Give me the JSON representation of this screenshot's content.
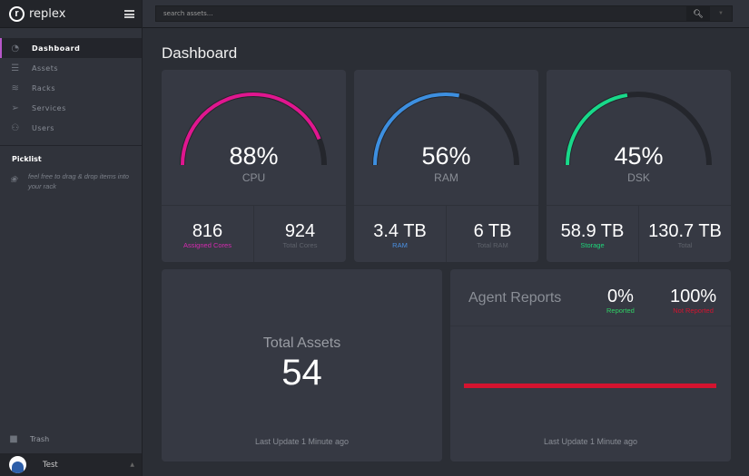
{
  "app": {
    "name": "replex"
  },
  "sidebar": {
    "items": [
      {
        "label": "Dashboard",
        "icon": "dashboard-icon",
        "active": true
      },
      {
        "label": "Assets",
        "icon": "list-icon"
      },
      {
        "label": "Racks",
        "icon": "layers-icon"
      },
      {
        "label": "Services",
        "icon": "paper-plane-icon"
      },
      {
        "label": "Users",
        "icon": "user-icon"
      }
    ],
    "picklist_title": "Picklist",
    "picklist_hint": "feel free to drag & drop items into your rack",
    "trash": "Trash",
    "user": "Test"
  },
  "search": {
    "placeholder": "search assets..."
  },
  "page_title": "Dashboard",
  "gauges": [
    {
      "value": 88,
      "display": "88%",
      "label": "CPU",
      "color": "#e0168f",
      "stats": [
        {
          "value": "816",
          "label": "Assigned Cores",
          "color": "#d62ab0"
        },
        {
          "value": "924",
          "label": "Total Cores"
        }
      ]
    },
    {
      "value": 56,
      "display": "56%",
      "label": "RAM",
      "color": "#3d8fe0",
      "stats": [
        {
          "value": "3.4 TB",
          "label": "RAM",
          "color": "#4a90e2"
        },
        {
          "value": "6 TB",
          "label": "Total RAM"
        }
      ]
    },
    {
      "value": 45,
      "display": "45%",
      "label": "DSK",
      "color": "#18d98a",
      "stats": [
        {
          "value": "58.9 TB",
          "label": "Storage",
          "color": "#1ed67a"
        },
        {
          "value": "130.7 TB",
          "label": "Total"
        }
      ]
    }
  ],
  "total_assets": {
    "label": "Total Assets",
    "value": "54",
    "update": "Last Update 1 Minute ago"
  },
  "agent_reports": {
    "title": "Agent Reports",
    "reported": {
      "value": "0%",
      "label": "Reported",
      "color": "#2fd165"
    },
    "not_reported": {
      "value": "100%",
      "label": "Not Reported",
      "color": "#d4132f"
    },
    "not_reported_fraction": 1.0,
    "update": "Last Update 1 Minute ago"
  }
}
